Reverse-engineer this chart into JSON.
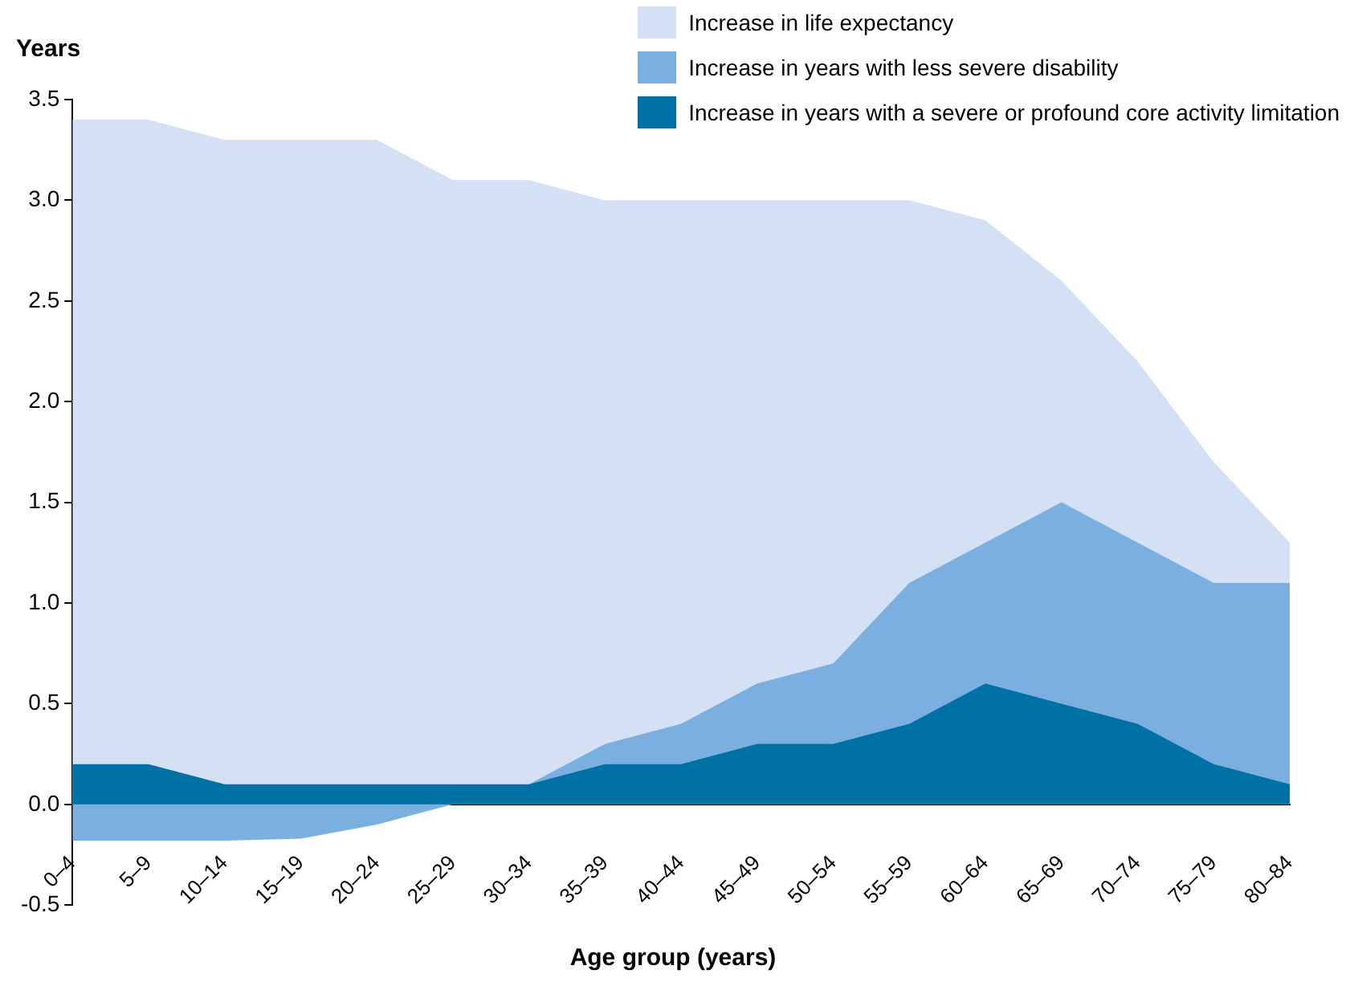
{
  "chart_data": {
    "type": "area",
    "xlabel": "Age group (years)",
    "ylabel": "Years",
    "categories": [
      "0–4",
      "5–9",
      "10–14",
      "15–19",
      "20–24",
      "25–29",
      "30–34",
      "35–39",
      "40–44",
      "45–49",
      "50–54",
      "55–59",
      "60–64",
      "65–69",
      "70–74",
      "75–79",
      "80–84"
    ],
    "series": [
      {
        "name": "Increase in life expectancy",
        "color": "#d4e0f3",
        "values": [
          3.4,
          3.4,
          3.3,
          3.3,
          3.3,
          3.1,
          3.1,
          3.0,
          3.0,
          3.0,
          3.0,
          3.0,
          2.9,
          2.6,
          2.2,
          1.7,
          1.3
        ]
      },
      {
        "name": "Increase in years with less severe disability",
        "color": "#7aafdf",
        "values": [
          -0.18,
          -0.18,
          -0.18,
          -0.17,
          -0.1,
          0.0,
          0.1,
          0.3,
          0.4,
          0.6,
          0.7,
          1.1,
          1.3,
          1.5,
          1.3,
          1.1,
          1.1
        ]
      },
      {
        "name": "Increase in years with a severe or profound core activity limitation",
        "color": "#0071a5",
        "values": [
          0.2,
          0.2,
          0.1,
          0.1,
          0.1,
          0.1,
          0.1,
          0.2,
          0.2,
          0.3,
          0.3,
          0.4,
          0.6,
          0.5,
          0.4,
          0.2,
          0.1
        ]
      }
    ],
    "ylim": [
      -0.5,
      3.5
    ],
    "yticks": [
      -0.5,
      {
        "value": 0,
        "label": "0.0"
      },
      0.5,
      {
        "value": 1,
        "label": "1.0"
      },
      1.5,
      {
        "value": 2,
        "label": "2.0"
      },
      2.5,
      {
        "value": 3,
        "label": "3.0"
      },
      3.5
    ],
    "grid": false,
    "legend": "top right"
  }
}
